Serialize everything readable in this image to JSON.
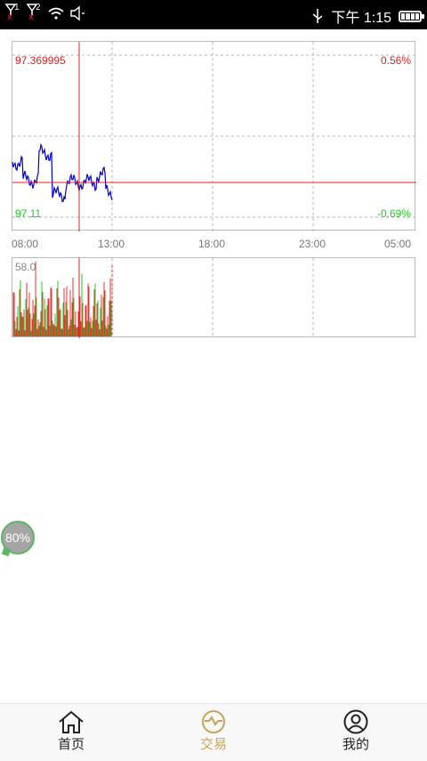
{
  "status_bar": {
    "sim1": "1",
    "sim2": "2",
    "time": "下午 1:15"
  },
  "chart": {
    "crosshair_price": "97.369995",
    "crosshair_pct": "0.56%",
    "low_price": "97.11",
    "low_pct": "-0.69%",
    "x_ticks": [
      "08:00",
      "13:00",
      "18:00",
      "23:00",
      "05:00"
    ],
    "volume_max": "58.0",
    "colors": {
      "up": "#e53333",
      "down": "#22cc22",
      "price_line": "#0000cc",
      "crosshair": "#e02020"
    }
  },
  "chart_data": {
    "type": "line",
    "x": [
      "08:00",
      "13:00",
      "18:00",
      "23:00",
      "05:00"
    ],
    "ylim": [
      97.11,
      97.369995
    ],
    "pct_range": [
      "0.56%",
      "-0.69%"
    ],
    "volume_max": 58.0,
    "series_note_visible": false
  },
  "badge": {
    "text": "80%"
  },
  "tabs": [
    {
      "label": "首页",
      "icon": "home-icon",
      "active": false
    },
    {
      "label": "交易",
      "icon": "trade-icon",
      "active": true
    },
    {
      "label": "我的",
      "icon": "profile-icon",
      "active": false
    }
  ]
}
